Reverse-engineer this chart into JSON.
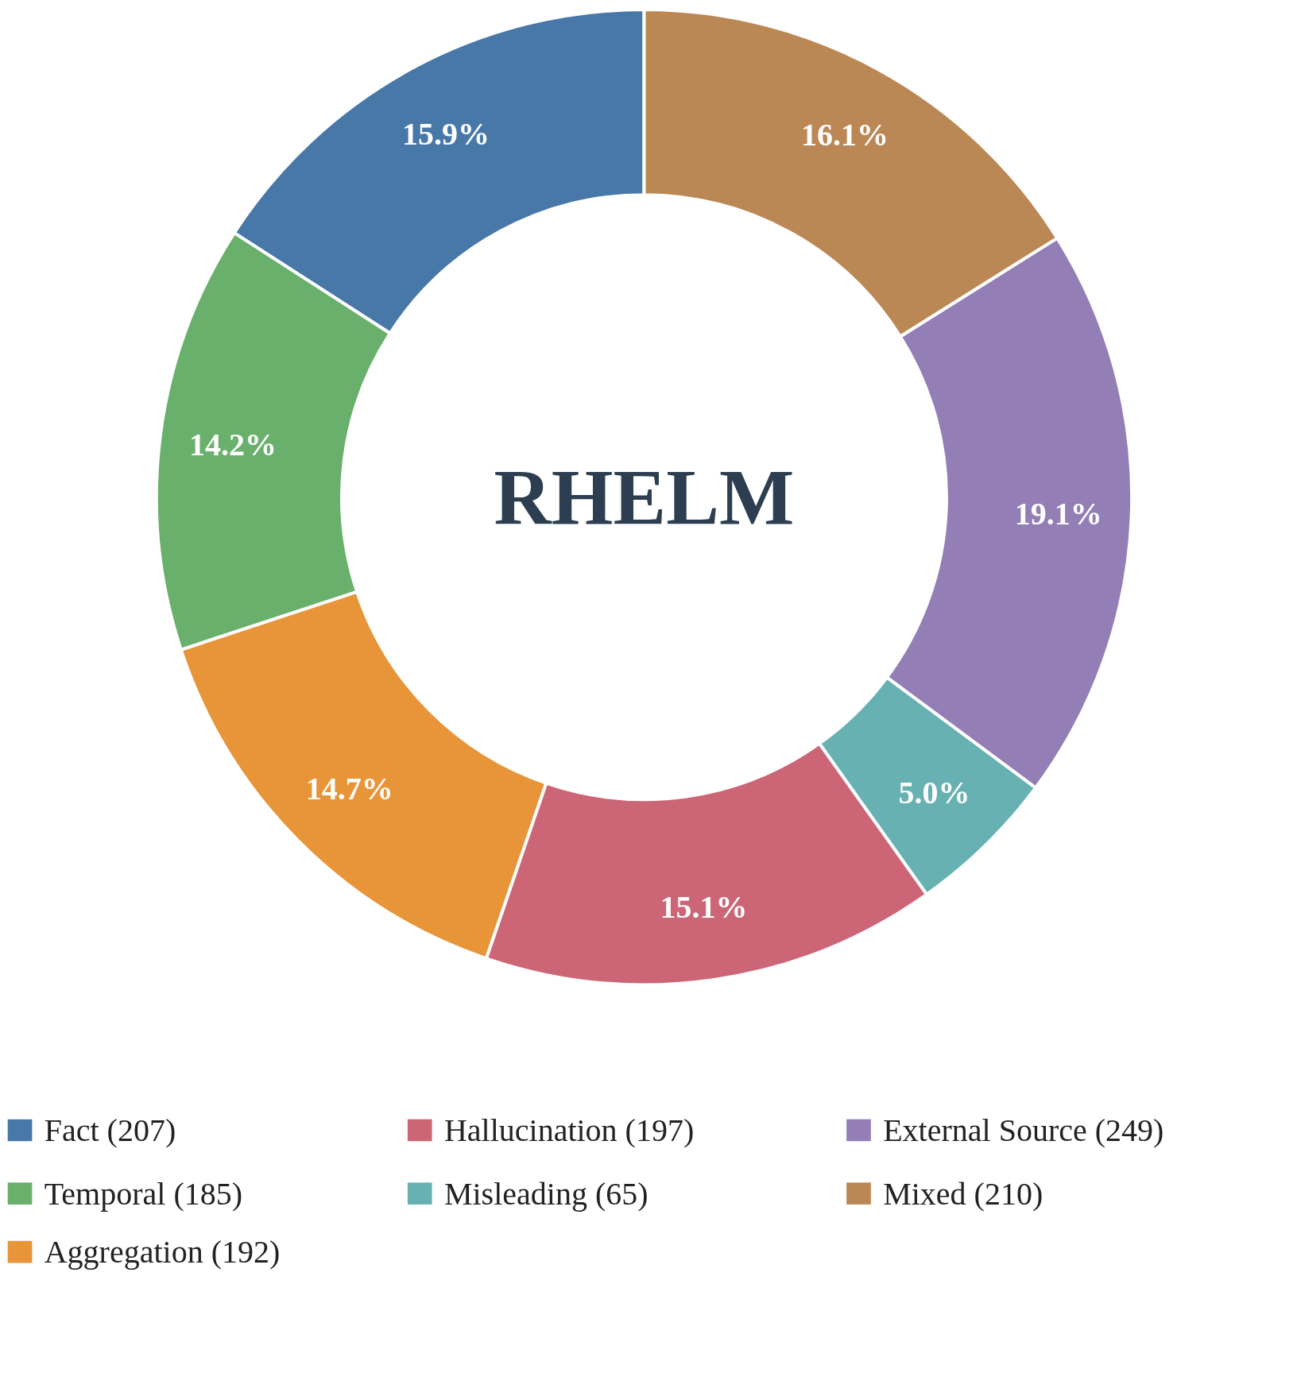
{
  "chart_data": {
    "type": "donut",
    "title": "RHELM",
    "categories": [
      "Fact  (207)",
      "Temporal  (185)",
      "Aggregation  (192)",
      "Hallucination  (197)",
      "Misleading  (65)",
      "External Source  (249)",
      "Mixed  (210)"
    ],
    "values": [
      15.9,
      14.2,
      14.7,
      15.1,
      5.0,
      19.1,
      16.1
    ],
    "value_labels": [
      "15.9%",
      "14.2%",
      "14.7%",
      "15.1%",
      "5.0%",
      "19.1%",
      "16.1%"
    ],
    "colors": [
      "#4878a8",
      "#6ab06d",
      "#e8953a",
      "#cc6677",
      "#67b1b2",
      "#937eb5",
      "#bb8755"
    ],
    "legend": "bottom"
  }
}
